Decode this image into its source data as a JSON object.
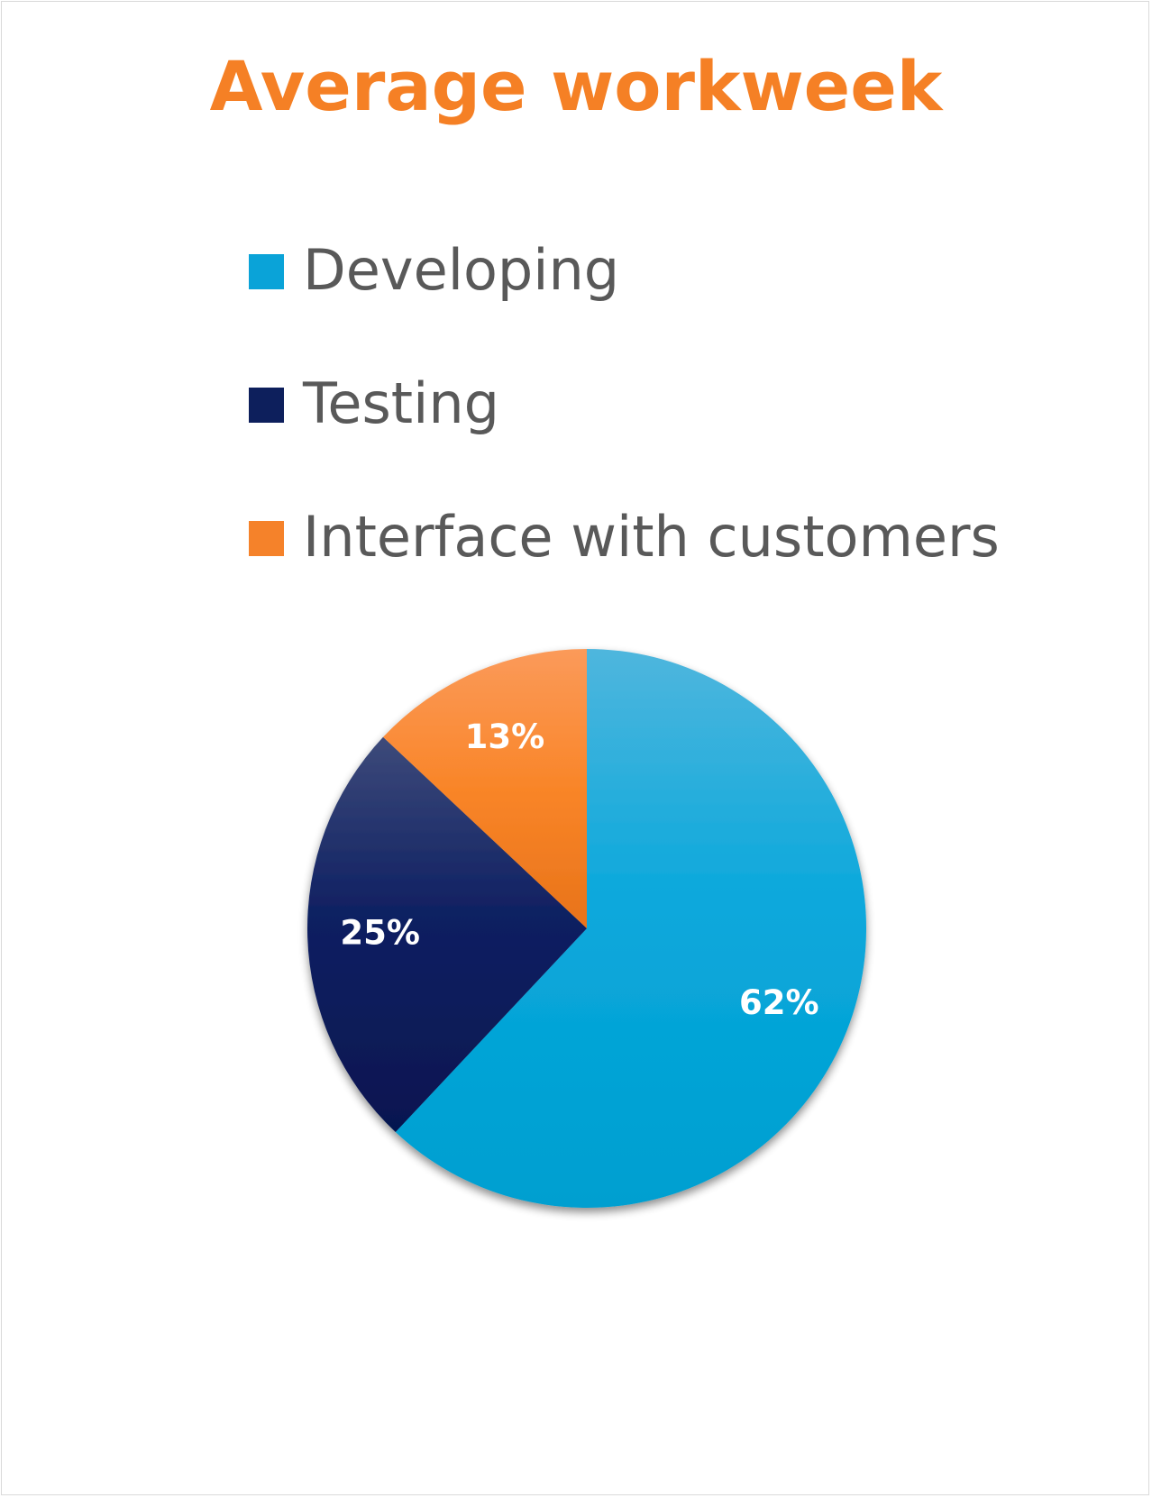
{
  "chart_data": {
    "type": "pie",
    "title": "Average workweek",
    "categories": [
      "Developing",
      "Testing",
      "Interface with customers"
    ],
    "values": [
      62,
      25,
      13
    ],
    "data_labels": [
      "62%",
      "25%",
      "13%"
    ],
    "unit": "%",
    "legend_placement": "top",
    "colors": [
      "#0aa3d8",
      "#0d1f5c",
      "#f5822a"
    ]
  }
}
